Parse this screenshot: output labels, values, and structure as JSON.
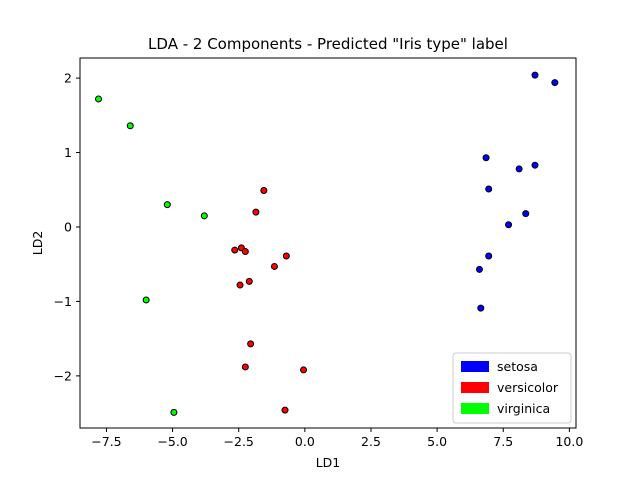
{
  "chart_data": {
    "type": "scatter",
    "title": "LDA - 2 Components - Predicted \"Iris type\" label",
    "xlabel": "LD1",
    "ylabel": "LD2",
    "xlim": [
      -8.5,
      10.25
    ],
    "ylim": [
      -2.7,
      2.27
    ],
    "xticks": [
      -7.5,
      -5.0,
      -2.5,
      0.0,
      2.5,
      5.0,
      7.5,
      10.0
    ],
    "xtick_labels": [
      "−7.5",
      "−5.0",
      "−2.5",
      "0.0",
      "2.5",
      "5.0",
      "7.5",
      "10.0"
    ],
    "yticks": [
      -2,
      -1,
      0,
      1,
      2
    ],
    "ytick_labels": [
      "−2",
      "−1",
      "0",
      "1",
      "2"
    ],
    "grid": false,
    "legend_position": "lower-right",
    "series": [
      {
        "name": "setosa",
        "color": "#0000ff",
        "points": [
          [
            8.7,
            2.04
          ],
          [
            9.45,
            1.94
          ],
          [
            6.85,
            0.93
          ],
          [
            8.1,
            0.78
          ],
          [
            8.7,
            0.83
          ],
          [
            6.95,
            0.51
          ],
          [
            8.35,
            0.18
          ],
          [
            7.7,
            0.03
          ],
          [
            6.95,
            -0.39
          ],
          [
            6.6,
            -0.57
          ],
          [
            6.65,
            -1.09
          ]
        ]
      },
      {
        "name": "versicolor",
        "color": "#ff0000",
        "points": [
          [
            -1.55,
            0.49
          ],
          [
            -1.85,
            0.2
          ],
          [
            -2.65,
            -0.31
          ],
          [
            -2.4,
            -0.28
          ],
          [
            -2.25,
            -0.33
          ],
          [
            -0.7,
            -0.39
          ],
          [
            -1.15,
            -0.53
          ],
          [
            -2.1,
            -0.73
          ],
          [
            -2.45,
            -0.78
          ],
          [
            -2.05,
            -1.57
          ],
          [
            -2.25,
            -1.88
          ],
          [
            -0.05,
            -1.92
          ],
          [
            -0.75,
            -2.46
          ]
        ]
      },
      {
        "name": "virginica",
        "color": "#00ff00",
        "points": [
          [
            -7.8,
            1.72
          ],
          [
            -6.6,
            1.36
          ],
          [
            -5.2,
            0.3
          ],
          [
            -3.8,
            0.15
          ],
          [
            -6.0,
            -0.98
          ],
          [
            -4.95,
            -2.49
          ]
        ]
      }
    ]
  }
}
